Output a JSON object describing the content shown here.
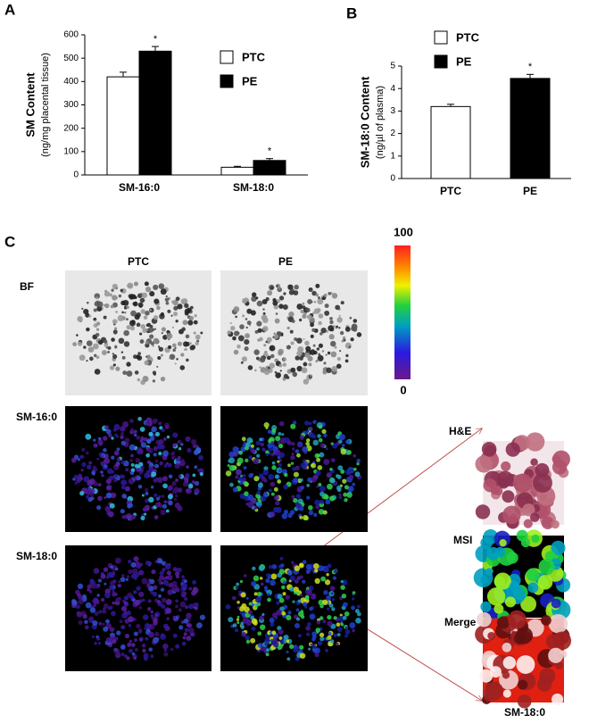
{
  "chart_data": [
    {
      "type": "bar",
      "panel": "A",
      "ylabel": "SM  Content",
      "ylabel_sub": "(ng/mg placental tissue)",
      "categories": [
        "SM-16:0",
        "SM-18:0"
      ],
      "series": [
        {
          "name": "PTC",
          "color": "#ffffff",
          "values": [
            420,
            33
          ],
          "errors": [
            20,
            4
          ]
        },
        {
          "name": "PE",
          "color": "#000000",
          "values": [
            530,
            62
          ],
          "errors": [
            20,
            8
          ],
          "significance": [
            "*",
            "*"
          ]
        }
      ],
      "ylim": [
        0,
        600
      ],
      "yticks": [
        0,
        100,
        200,
        300,
        400,
        500,
        600
      ],
      "grid": false
    },
    {
      "type": "bar",
      "panel": "B",
      "ylabel": "SM-18:0  Content",
      "ylabel_sub": "(ng/µl  of plasma)",
      "categories": [
        "PTC",
        "PE"
      ],
      "colors": [
        "#ffffff",
        "#000000"
      ],
      "values": [
        3.2,
        4.45
      ],
      "errors": [
        0.1,
        0.18
      ],
      "significance": [
        null,
        "*"
      ],
      "ylim": [
        0,
        5
      ],
      "yticks": [
        0,
        1,
        2,
        3,
        4,
        5
      ],
      "grid": false
    }
  ],
  "panel_c": {
    "panel": "C",
    "columns": [
      "PTC",
      "PE"
    ],
    "rows": [
      "BF",
      "SM-16:0",
      "SM-18:0"
    ],
    "colorbar": {
      "max": 100,
      "min": 0
    },
    "inset_labels": [
      "H&E",
      "MSI",
      "Merge"
    ],
    "inset_caption": "SM-18:0"
  }
}
